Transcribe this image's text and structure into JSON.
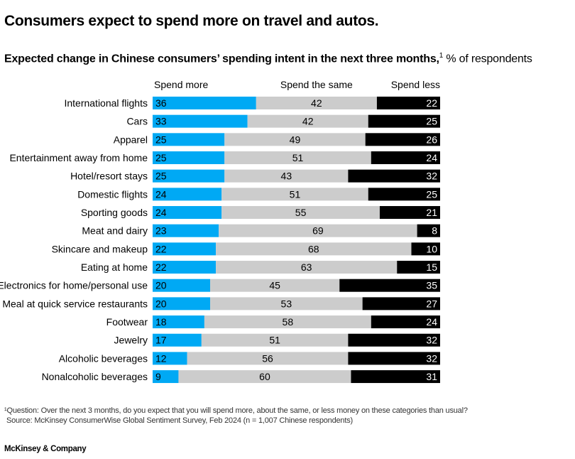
{
  "title": "Consumers expect to spend more on travel and autos.",
  "subtitle": {
    "bold": "Expected change in Chinese consumers’ spending intent in the next three months,",
    "footnote_mark": "1",
    "unit": " % of respondents"
  },
  "chart_data": {
    "type": "bar",
    "orientation": "horizontal",
    "stacked": true,
    "title": "Expected change in Chinese consumers’ spending intent in the next three months",
    "unit": "% of respondents",
    "xlim": [
      0,
      100
    ],
    "grid": false,
    "legend_position": "top",
    "categories": [
      "International flights",
      "Cars",
      "Apparel",
      "Entertainment away from home",
      "Hotel/resort stays",
      "Domestic flights",
      "Sporting goods",
      "Meat and dairy",
      "Skincare and makeup",
      "Eating at home",
      "Electronics for home/personal use",
      "Meal at quick service restaurants",
      "Footwear",
      "Jewelry",
      "Alcoholic beverages",
      "Nonalcoholic beverages"
    ],
    "series": [
      {
        "name": "Spend more",
        "color": "#00a9f4",
        "values": [
          36,
          33,
          25,
          25,
          25,
          24,
          24,
          23,
          22,
          22,
          20,
          20,
          18,
          17,
          12,
          9
        ]
      },
      {
        "name": "Spend the same",
        "color": "#cccccc",
        "values": [
          42,
          42,
          49,
          51,
          43,
          51,
          55,
          69,
          68,
          63,
          45,
          53,
          58,
          51,
          56,
          60
        ]
      },
      {
        "name": "Spend less",
        "color": "#000000",
        "values": [
          22,
          25,
          26,
          24,
          32,
          25,
          21,
          8,
          10,
          15,
          35,
          27,
          24,
          32,
          32,
          31
        ]
      }
    ]
  },
  "footnotes": {
    "question": "¹Question: Over the next 3 months, do you expect that you will spend more, about the same, or less money on these categories than usual?",
    "source": "Source: McKinsey ConsumerWise Global Sentiment Survey, Feb 2024 (n = 1,007 Chinese respondents)"
  },
  "brand": "McKinsey & Company"
}
